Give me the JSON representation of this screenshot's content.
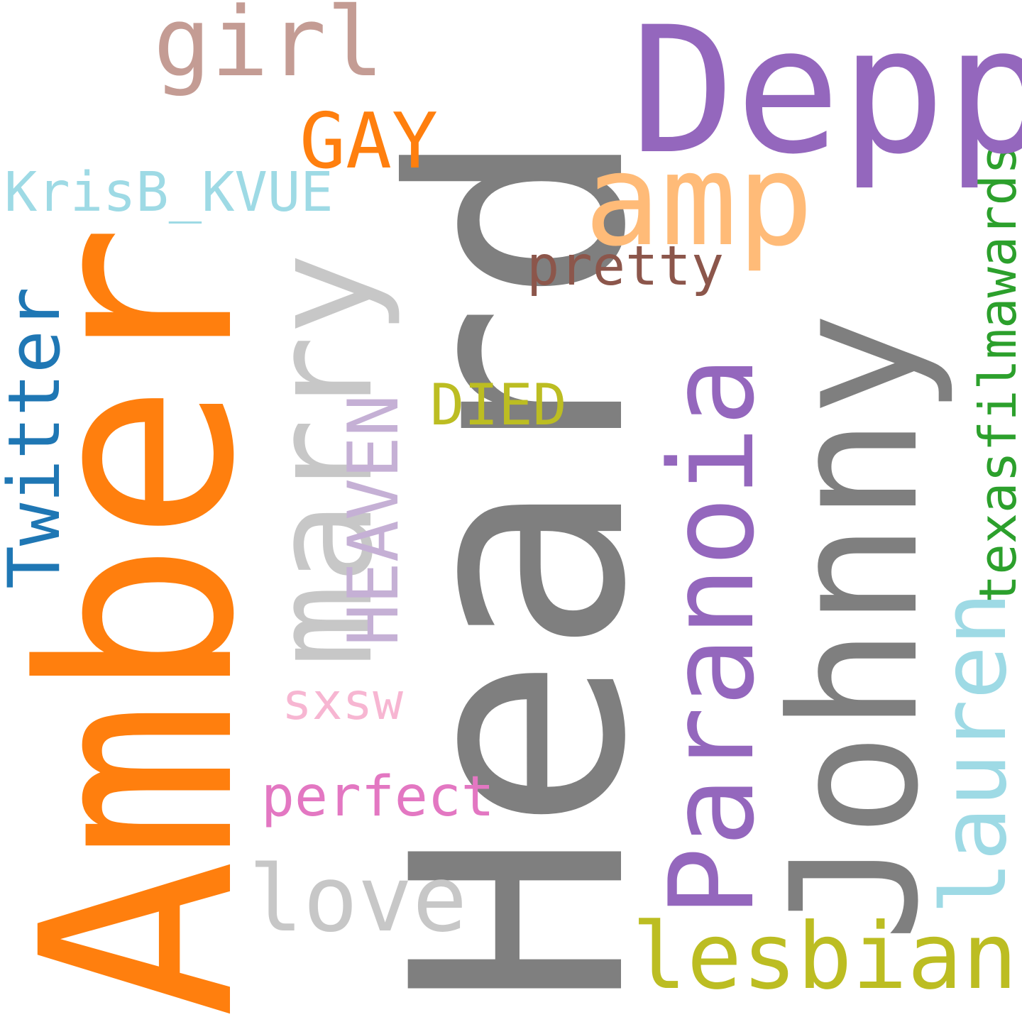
{
  "words": {
    "amber": {
      "text": "Amber",
      "color": "#ff7f0e",
      "orientation": "vertical"
    },
    "heard": {
      "text": "Heard",
      "color": "#7f7f7f",
      "orientation": "vertical"
    },
    "depp": {
      "text": "Depp",
      "color": "#9467bd",
      "orientation": "horizontal"
    },
    "johnny": {
      "text": "Johnny",
      "color": "#7f7f7f",
      "orientation": "vertical"
    },
    "paranoia": {
      "text": "Paranoia",
      "color": "#9467bd",
      "orientation": "vertical"
    },
    "marry": {
      "text": "marry",
      "color": "#c7c7c7",
      "orientation": "vertical"
    },
    "amp": {
      "text": "amp",
      "color": "#ffbb78",
      "orientation": "horizontal"
    },
    "girl": {
      "text": "girl",
      "color": "#c49c94",
      "orientation": "horizontal"
    },
    "gay": {
      "text": "GAY",
      "color": "#ff7f0e",
      "orientation": "horizontal"
    },
    "krisb": {
      "text": "KrisB_KVUE",
      "color": "#9edae5",
      "orientation": "horizontal"
    },
    "twitter": {
      "text": "Twitter",
      "color": "#1f77b4",
      "orientation": "vertical"
    },
    "heaven": {
      "text": "HEAVEN",
      "color": "#c5b0d5",
      "orientation": "vertical"
    },
    "pretty": {
      "text": "pretty",
      "color": "#8c564b",
      "orientation": "horizontal"
    },
    "died": {
      "text": "DIED",
      "color": "#bcbd22",
      "orientation": "horizontal"
    },
    "texasfilm": {
      "text": "texasfilmawards",
      "color": "#2ca02c",
      "orientation": "vertical"
    },
    "lauren": {
      "text": "lauren",
      "color": "#9edae5",
      "orientation": "vertical"
    },
    "sxsw": {
      "text": "sxsw",
      "color": "#f7b6d2",
      "orientation": "horizontal"
    },
    "perfect": {
      "text": "perfect",
      "color": "#e377c2",
      "orientation": "horizontal"
    },
    "love": {
      "text": "love",
      "color": "#c7c7c7",
      "orientation": "horizontal"
    },
    "lesbian": {
      "text": "lesbian",
      "color": "#bcbd22",
      "orientation": "horizontal"
    }
  }
}
